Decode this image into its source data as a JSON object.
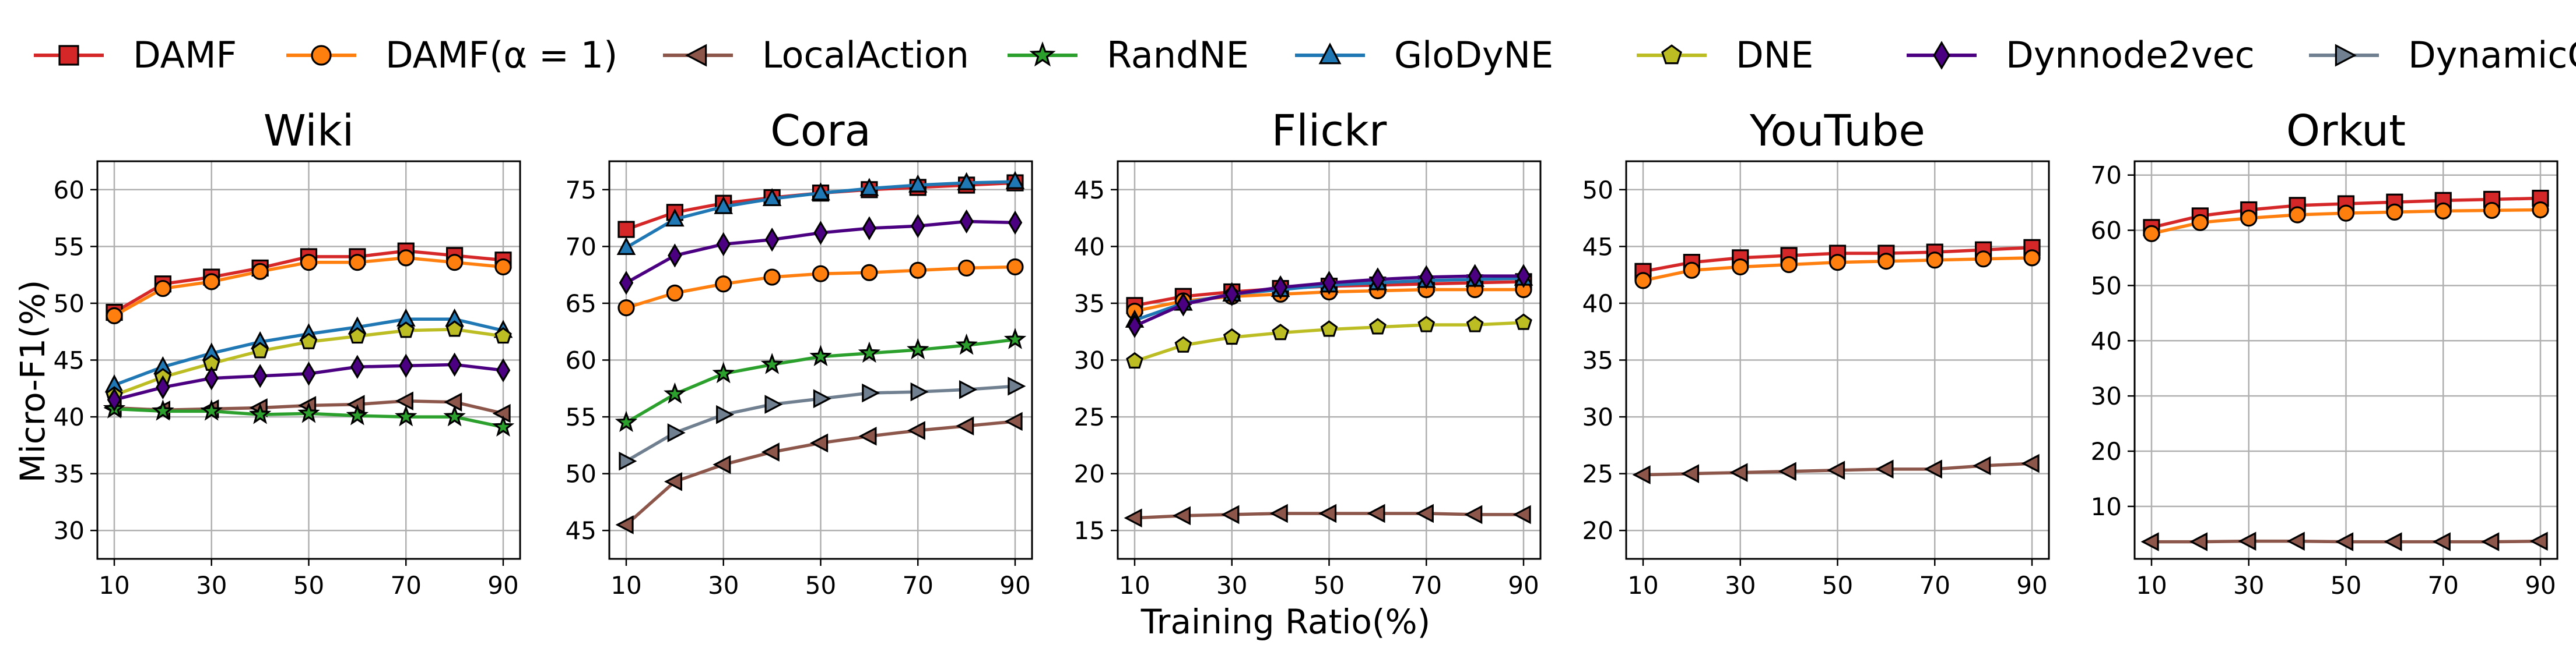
{
  "legend": [
    {
      "name": "DAMF",
      "color": "#d62728",
      "marker": "square"
    },
    {
      "name": "DAMF(α = 1)",
      "color": "#ff7f0e",
      "marker": "circle"
    },
    {
      "name": "LocalAction",
      "color": "#8c564b",
      "marker": "triangle-left"
    },
    {
      "name": "RandNE",
      "color": "#2ca02c",
      "marker": "star"
    },
    {
      "name": "GloDyNE",
      "color": "#1f77b4",
      "marker": "triangle-up"
    },
    {
      "name": "DNE",
      "color": "#bcbd22",
      "marker": "pentagon"
    },
    {
      "name": "Dynnode2vec",
      "color": "#4b0082",
      "marker": "diamond"
    },
    {
      "name": "DynamicGEM",
      "color": "#708090",
      "marker": "triangle-right"
    }
  ],
  "ylabel": "Micro-F1(%)",
  "xlabel": "Training Ratio(%)",
  "chart_data": [
    {
      "type": "line",
      "title": "Wiki",
      "x": [
        10,
        20,
        30,
        40,
        50,
        60,
        70,
        80,
        90
      ],
      "xticks": [
        10,
        30,
        50,
        70,
        90
      ],
      "ylim": [
        27.5,
        62.5
      ],
      "yticks": [
        30,
        35,
        40,
        45,
        50,
        55,
        60
      ],
      "grid": true,
      "series": [
        {
          "name": "DAMF",
          "values": [
            49.2,
            51.7,
            52.3,
            53.1,
            54.1,
            54.1,
            54.6,
            54.2,
            53.8
          ]
        },
        {
          "name": "DAMF(α = 1)",
          "values": [
            48.9,
            51.3,
            51.9,
            52.8,
            53.6,
            53.6,
            54.0,
            53.6,
            53.2
          ]
        },
        {
          "name": "LocalAction",
          "values": [
            40.8,
            40.6,
            40.7,
            40.8,
            41.0,
            41.1,
            41.4,
            41.3,
            40.3
          ]
        },
        {
          "name": "RandNE",
          "values": [
            40.7,
            40.5,
            40.5,
            40.2,
            40.3,
            40.1,
            40.0,
            40.0,
            39.1
          ]
        },
        {
          "name": "GloDyNE",
          "values": [
            42.8,
            44.4,
            45.6,
            46.6,
            47.3,
            47.9,
            48.6,
            48.6,
            47.6
          ]
        },
        {
          "name": "DNE",
          "values": [
            41.9,
            43.5,
            44.7,
            45.8,
            46.6,
            47.1,
            47.6,
            47.7,
            47.1
          ]
        },
        {
          "name": "Dynnode2vec",
          "values": [
            41.5,
            42.6,
            43.4,
            43.6,
            43.8,
            44.4,
            44.5,
            44.6,
            44.1
          ]
        }
      ]
    },
    {
      "type": "line",
      "title": "Cora",
      "x": [
        10,
        20,
        30,
        40,
        50,
        60,
        70,
        80,
        90
      ],
      "xticks": [
        10,
        30,
        50,
        70,
        90
      ],
      "ylim": [
        42.5,
        77.5
      ],
      "yticks": [
        45,
        50,
        55,
        60,
        65,
        70,
        75
      ],
      "grid": true,
      "series": [
        {
          "name": "DAMF",
          "values": [
            71.5,
            73.0,
            73.8,
            74.3,
            74.7,
            75.0,
            75.2,
            75.4,
            75.6
          ]
        },
        {
          "name": "DAMF(α = 1)",
          "values": [
            64.6,
            65.9,
            66.7,
            67.3,
            67.6,
            67.7,
            67.9,
            68.1,
            68.2
          ]
        },
        {
          "name": "LocalAction",
          "values": [
            45.5,
            49.3,
            50.8,
            51.9,
            52.7,
            53.3,
            53.8,
            54.2,
            54.6
          ]
        },
        {
          "name": "RandNE",
          "values": [
            54.5,
            57.0,
            58.8,
            59.6,
            60.3,
            60.6,
            60.9,
            61.3,
            61.8
          ]
        },
        {
          "name": "GloDyNE",
          "values": [
            69.9,
            72.4,
            73.5,
            74.2,
            74.7,
            75.1,
            75.4,
            75.6,
            75.7
          ]
        },
        {
          "name": "Dynnode2vec",
          "values": [
            66.8,
            69.2,
            70.2,
            70.6,
            71.2,
            71.6,
            71.8,
            72.2,
            72.1
          ]
        },
        {
          "name": "DynamicGEM",
          "values": [
            51.1,
            53.6,
            55.2,
            56.1,
            56.6,
            57.1,
            57.2,
            57.4,
            57.7
          ]
        }
      ]
    },
    {
      "type": "line",
      "title": "Flickr",
      "x": [
        10,
        20,
        30,
        40,
        50,
        60,
        70,
        80,
        90
      ],
      "xticks": [
        10,
        30,
        50,
        70,
        90
      ],
      "ylim": [
        12.5,
        47.5
      ],
      "yticks": [
        15,
        20,
        25,
        30,
        35,
        40,
        45
      ],
      "grid": true,
      "series": [
        {
          "name": "DAMF",
          "values": [
            34.8,
            35.6,
            36.0,
            36.3,
            36.5,
            36.6,
            36.7,
            36.8,
            36.9
          ]
        },
        {
          "name": "DAMF(α = 1)",
          "values": [
            34.3,
            35.2,
            35.6,
            35.8,
            36.0,
            36.1,
            36.2,
            36.2,
            36.2
          ]
        },
        {
          "name": "LocalAction",
          "values": [
            16.1,
            16.3,
            16.4,
            16.5,
            16.5,
            16.5,
            16.5,
            16.4,
            16.4
          ]
        },
        {
          "name": "GloDyNE",
          "values": [
            33.5,
            35.0,
            35.8,
            36.2,
            36.6,
            36.8,
            37.0,
            37.1,
            37.2
          ]
        },
        {
          "name": "DNE",
          "values": [
            29.9,
            31.3,
            32.0,
            32.4,
            32.7,
            32.9,
            33.1,
            33.1,
            33.3
          ]
        },
        {
          "name": "Dynnode2vec",
          "values": [
            33.0,
            34.9,
            35.8,
            36.4,
            36.8,
            37.1,
            37.3,
            37.4,
            37.4
          ]
        }
      ]
    },
    {
      "type": "line",
      "title": "YouTube",
      "x": [
        10,
        20,
        30,
        40,
        50,
        60,
        70,
        80,
        90
      ],
      "xticks": [
        10,
        30,
        50,
        70,
        90
      ],
      "ylim": [
        17.5,
        52.5
      ],
      "yticks": [
        20,
        25,
        30,
        35,
        40,
        45,
        50
      ],
      "grid": true,
      "series": [
        {
          "name": "DAMF",
          "values": [
            42.8,
            43.6,
            44.0,
            44.2,
            44.4,
            44.4,
            44.5,
            44.7,
            44.9
          ]
        },
        {
          "name": "DAMF(α = 1)",
          "values": [
            42.0,
            42.9,
            43.2,
            43.4,
            43.6,
            43.7,
            43.8,
            43.9,
            44.0
          ]
        },
        {
          "name": "LocalAction",
          "values": [
            24.9,
            25.0,
            25.1,
            25.2,
            25.3,
            25.4,
            25.4,
            25.7,
            25.9
          ]
        }
      ]
    },
    {
      "type": "line",
      "title": "Orkut",
      "x": [
        10,
        20,
        30,
        40,
        50,
        60,
        70,
        80,
        90
      ],
      "xticks": [
        10,
        30,
        50,
        70,
        90
      ],
      "ylim": [
        0.5,
        72.5
      ],
      "yticks": [
        10,
        20,
        30,
        40,
        50,
        60,
        70
      ],
      "grid": true,
      "series": [
        {
          "name": "DAMF",
          "values": [
            60.5,
            62.6,
            63.7,
            64.5,
            64.8,
            65.1,
            65.4,
            65.6,
            65.8
          ]
        },
        {
          "name": "DAMF(α = 1)",
          "values": [
            59.4,
            61.4,
            62.2,
            62.8,
            63.1,
            63.3,
            63.5,
            63.6,
            63.7
          ]
        },
        {
          "name": "LocalAction",
          "values": [
            3.6,
            3.6,
            3.7,
            3.7,
            3.6,
            3.6,
            3.6,
            3.6,
            3.7
          ]
        }
      ]
    }
  ]
}
